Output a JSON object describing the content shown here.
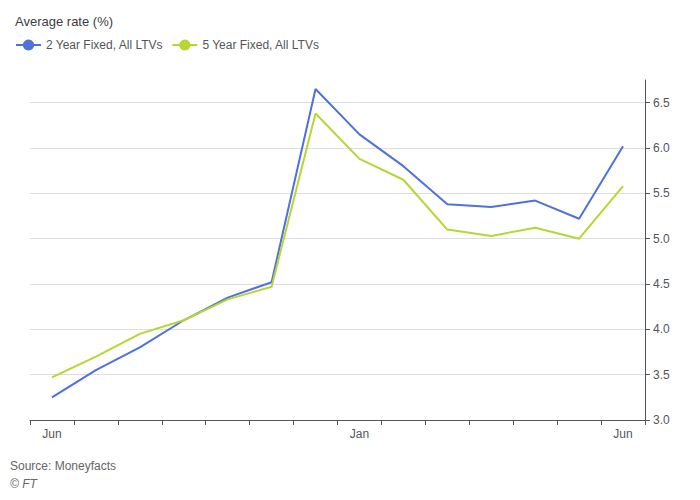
{
  "chart_data": {
    "type": "line",
    "ylabel": "Average rate (%)",
    "annotations": [
      "Source: Moneyfacts",
      "© FT"
    ],
    "categories": [
      "Jun",
      null,
      null,
      null,
      null,
      null,
      null,
      "Jan",
      null,
      null,
      null,
      null,
      null,
      "Jun"
    ],
    "series": [
      {
        "name": "2 Year Fixed, All LTVs",
        "values": [
          3.25,
          3.55,
          3.8,
          4.1,
          4.35,
          4.52,
          6.65,
          6.15,
          5.8,
          5.38,
          5.35,
          5.42,
          5.22,
          6.02
        ]
      },
      {
        "name": "5 Year Fixed, All LTVs",
        "values": [
          3.47,
          3.7,
          3.95,
          4.1,
          4.33,
          4.47,
          6.38,
          5.88,
          5.65,
          5.1,
          5.03,
          5.12,
          5.0,
          5.58
        ]
      }
    ],
    "ylim": [
      3.0,
      6.75
    ],
    "yticks": [
      {
        "value": 3,
        "label": "3.0"
      },
      3.5,
      {
        "value": 4,
        "label": "4.0"
      },
      4.5,
      {
        "value": 5,
        "label": "5.0"
      },
      5.5,
      {
        "value": 6,
        "label": "6.0"
      },
      6.5
    ],
    "grid": true,
    "legend": "upper left"
  }
}
